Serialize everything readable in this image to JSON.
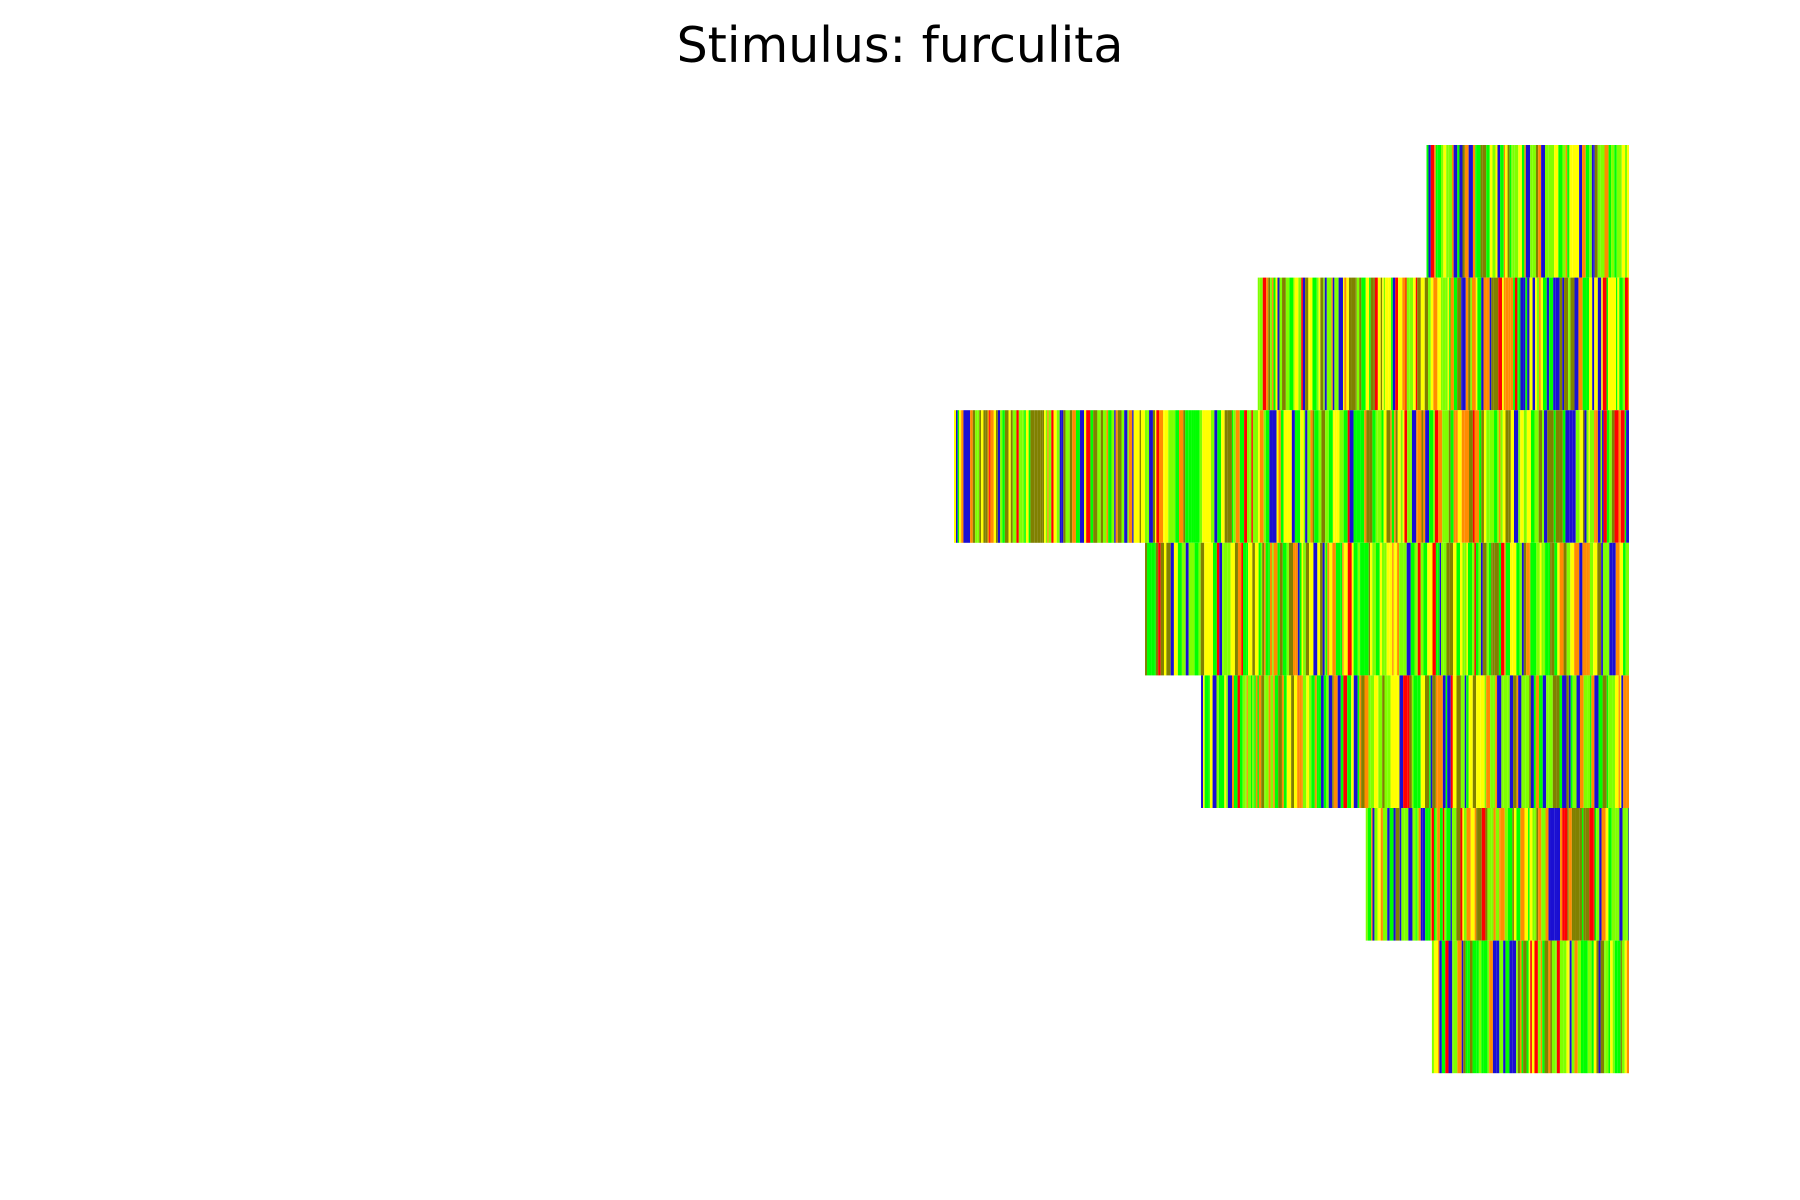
{
  "chart_data": {
    "type": "heatmap",
    "title": "Stimulus: furculita",
    "description_colors": [
      "#1a0fd2",
      "#00ff00",
      "#7fff00",
      "#ffff00",
      "#ff8c00",
      "#ff0000",
      "#808000"
    ],
    "xlim": [
      0,
      100
    ],
    "grid": false,
    "axes_visible": false,
    "rows": [
      {
        "start": 70.0,
        "end": 100.0,
        "seed": 11
      },
      {
        "start": 45.0,
        "end": 100.0,
        "seed": 23
      },
      {
        "start": 0.0,
        "end": 100.0,
        "seed": 37
      },
      {
        "start": 28.3,
        "end": 100.0,
        "seed": 41
      },
      {
        "start": 36.6,
        "end": 100.0,
        "seed": 53
      },
      {
        "start": 61.0,
        "end": 100.0,
        "seed": 67
      },
      {
        "start": 70.8,
        "end": 100.0,
        "seed": 79
      }
    ]
  }
}
